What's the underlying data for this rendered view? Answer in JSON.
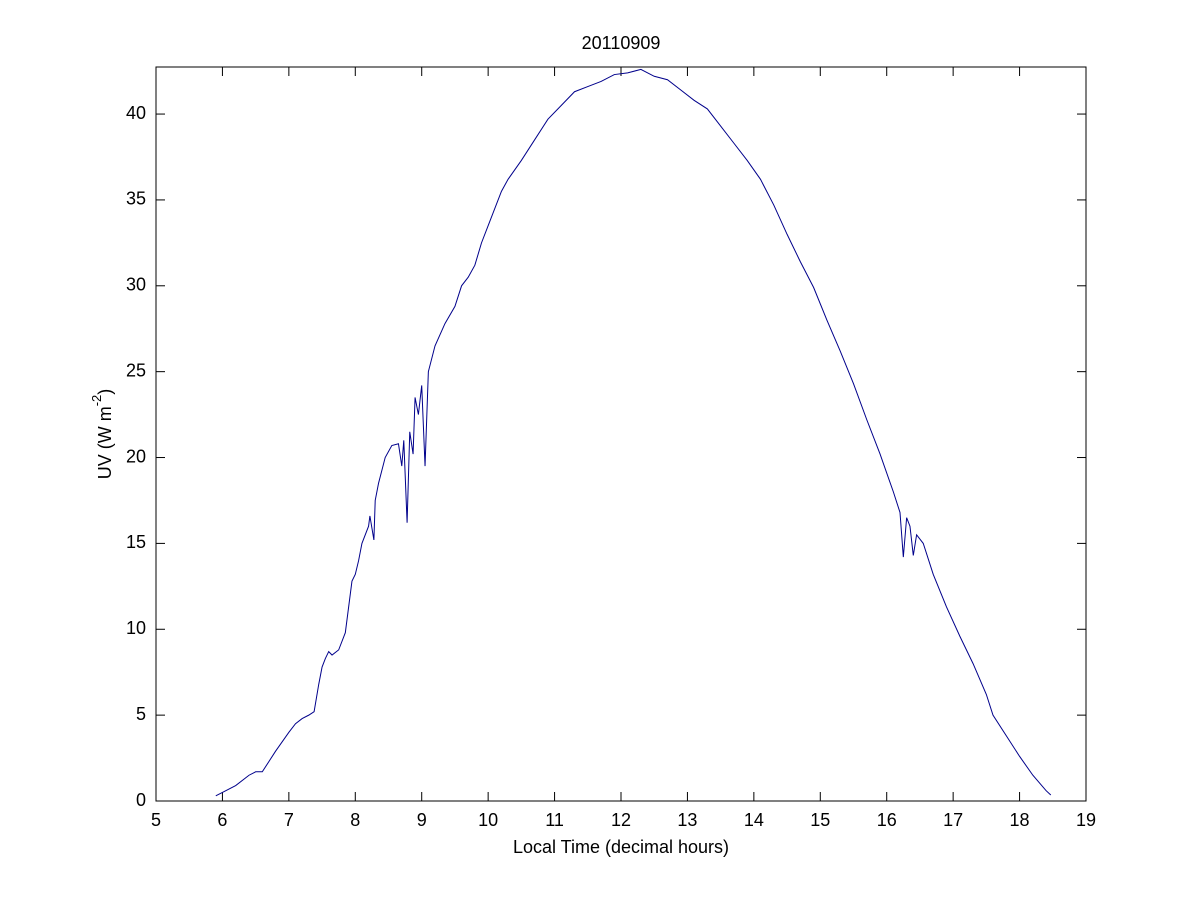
{
  "chart_data": {
    "type": "line",
    "title": "20110909",
    "xlabel": "Local Time (decimal hours)",
    "ylabel": {
      "text": "UV (W m",
      "sup": "-2",
      "end": ")"
    },
    "xlim": [
      5,
      19
    ],
    "ylim": [
      0,
      42.74
    ],
    "xticks": [
      5,
      6,
      7,
      8,
      9,
      10,
      11,
      12,
      13,
      14,
      15,
      16,
      17,
      18,
      19
    ],
    "yticks": [
      0,
      5,
      10,
      15,
      20,
      25,
      30,
      35,
      40
    ],
    "grid": false,
    "series": [
      {
        "color": "#00008B",
        "x": [
          5.9,
          6.0,
          6.2,
          6.4,
          6.5,
          6.6,
          6.7,
          6.8,
          7.0,
          7.1,
          7.2,
          7.3,
          7.38,
          7.45,
          7.5,
          7.55,
          7.6,
          7.65,
          7.75,
          7.85,
          7.95,
          8.0,
          8.05,
          8.1,
          8.2,
          8.22,
          8.28,
          8.3,
          8.35,
          8.45,
          8.55,
          8.65,
          8.7,
          8.73,
          8.78,
          8.82,
          8.87,
          8.9,
          8.95,
          9.0,
          9.05,
          9.1,
          9.2,
          9.35,
          9.5,
          9.6,
          9.7,
          9.8,
          9.9,
          10.0,
          10.2,
          10.3,
          10.5,
          10.7,
          10.9,
          11.1,
          11.3,
          11.5,
          11.7,
          11.9,
          12.1,
          12.3,
          12.5,
          12.7,
          12.9,
          13.1,
          13.3,
          13.5,
          13.7,
          13.9,
          14.1,
          14.3,
          14.5,
          14.7,
          14.9,
          15.1,
          15.3,
          15.5,
          15.7,
          15.9,
          16.1,
          16.2,
          16.25,
          16.3,
          16.35,
          16.4,
          16.45,
          16.55,
          16.7,
          16.9,
          17.1,
          17.3,
          17.5,
          17.6,
          17.8,
          18.0,
          18.2,
          18.4,
          18.47
        ],
        "values": [
          0.3,
          0.5,
          0.9,
          1.5,
          1.7,
          1.7,
          2.3,
          2.9,
          4.0,
          4.5,
          4.8,
          5.0,
          5.2,
          6.8,
          7.8,
          8.3,
          8.7,
          8.5,
          8.8,
          9.8,
          12.8,
          13.2,
          14.0,
          15.0,
          16.0,
          16.6,
          15.2,
          17.5,
          18.5,
          20.0,
          20.7,
          20.8,
          19.5,
          21.0,
          16.2,
          21.5,
          20.2,
          23.5,
          22.5,
          24.2,
          19.5,
          25.0,
          26.5,
          27.8,
          28.8,
          30.0,
          30.5,
          31.2,
          32.5,
          33.5,
          35.5,
          36.2,
          37.3,
          38.5,
          39.7,
          40.5,
          41.3,
          41.6,
          41.9,
          42.3,
          42.4,
          42.6,
          42.2,
          42.0,
          41.4,
          40.8,
          40.3,
          39.3,
          38.3,
          37.3,
          36.2,
          34.7,
          33.0,
          31.4,
          29.9,
          28.0,
          26.2,
          24.3,
          22.2,
          20.2,
          18.0,
          16.8,
          14.2,
          16.5,
          16.0,
          14.3,
          15.5,
          15.0,
          13.2,
          11.3,
          9.6,
          8.0,
          6.2,
          5.0,
          3.8,
          2.6,
          1.5,
          0.6,
          0.35
        ]
      }
    ]
  }
}
